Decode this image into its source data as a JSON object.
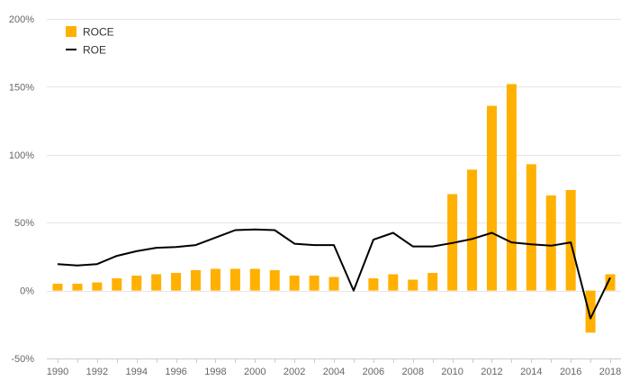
{
  "chart_data": {
    "type": "bar",
    "x": [
      1990,
      1991,
      1992,
      1993,
      1994,
      1995,
      1996,
      1997,
      1998,
      1999,
      2000,
      2001,
      2002,
      2003,
      2004,
      2005,
      2006,
      2007,
      2008,
      2009,
      2010,
      2011,
      2012,
      2013,
      2014,
      2015,
      2016,
      2017,
      2018
    ],
    "x_tick_labels": [
      "1990",
      "1992",
      "1994",
      "1996",
      "1998",
      "2000",
      "2002",
      "2004",
      "2006",
      "2008",
      "2010",
      "2012",
      "2014",
      "2016",
      "2018"
    ],
    "ylim": [
      -50,
      200
    ],
    "y_ticks": [
      -50,
      0,
      50,
      100,
      150,
      200
    ],
    "y_tick_labels": [
      "-50%",
      "0%",
      "50%",
      "100%",
      "150%",
      "200%"
    ],
    "grid": "horizontal",
    "legend_position": "top-left",
    "series": [
      {
        "name": "ROCE",
        "kind": "bar",
        "color": "#ffb000",
        "values": [
          5,
          5,
          6,
          9,
          11,
          12,
          13,
          15,
          16,
          16,
          16,
          15,
          11,
          11,
          10,
          null,
          9,
          12,
          8,
          13,
          71,
          89,
          136,
          152,
          93,
          70,
          74,
          -31,
          12
        ]
      },
      {
        "name": "ROE",
        "kind": "line",
        "color": "#000000",
        "values": [
          19.5,
          18.5,
          19.5,
          25.5,
          29,
          31.5,
          32,
          33.5,
          39,
          44.5,
          45,
          44.5,
          34.5,
          33.5,
          33.5,
          0,
          37.5,
          42.5,
          32.5,
          32.5,
          35,
          38,
          42.5,
          35.5,
          34,
          33,
          35.5,
          -20.5,
          9.5
        ]
      }
    ]
  }
}
